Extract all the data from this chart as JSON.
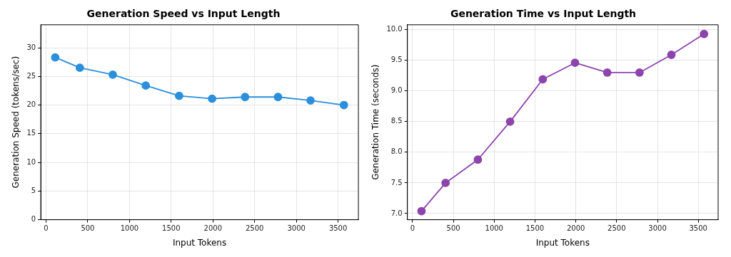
{
  "chart_data": [
    {
      "type": "line",
      "title": "Generation Speed vs Input Length",
      "xlabel": "Input Tokens",
      "ylabel": "Generation Speed (tokens/sec)",
      "x": [
        110,
        405,
        800,
        1195,
        1595,
        1990,
        2385,
        2780,
        3170,
        3570
      ],
      "series": [
        {
          "color": "#2b8fdc",
          "values": [
            28.3,
            26.5,
            25.3,
            23.4,
            21.6,
            21.1,
            21.4,
            21.4,
            20.8,
            20.0
          ]
        }
      ],
      "xlim": [
        -63,
        3743
      ],
      "xticks": [
        0,
        500,
        1000,
        1500,
        2000,
        2500,
        3000,
        3500
      ],
      "ylim": [
        0,
        34
      ],
      "yticks": [
        0,
        5,
        10,
        15,
        20,
        25,
        30
      ],
      "grid": true,
      "marker": "circle",
      "line_style": "solid",
      "legend": false
    },
    {
      "type": "line",
      "title": "Generation Time vs Input Length",
      "xlabel": "Input Tokens",
      "ylabel": "Generation Time (seconds)",
      "x": [
        110,
        405,
        800,
        1195,
        1595,
        1990,
        2385,
        2780,
        3170,
        3570
      ],
      "series": [
        {
          "color": "#8e44ad",
          "values": [
            7.04,
            7.5,
            7.88,
            8.5,
            9.19,
            9.46,
            9.3,
            9.3,
            9.59,
            9.93
          ]
        }
      ],
      "xlim": [
        -63,
        3743
      ],
      "xticks": [
        0,
        500,
        1000,
        1500,
        2000,
        2500,
        3000,
        3500
      ],
      "ylim": [
        6.9,
        10.08
      ],
      "yticks": [
        {
          "value": 7,
          "label": "7.0"
        },
        {
          "value": 7.5,
          "label": "7.5"
        },
        {
          "value": 8,
          "label": "8.0"
        },
        {
          "value": 8.5,
          "label": "8.5"
        },
        {
          "value": 9,
          "label": "9.0"
        },
        {
          "value": 9.5,
          "label": "9.5"
        },
        {
          "value": 10,
          "label": "10.0"
        }
      ],
      "grid": true,
      "marker": "circle",
      "line_style": "solid",
      "legend": false
    }
  ]
}
